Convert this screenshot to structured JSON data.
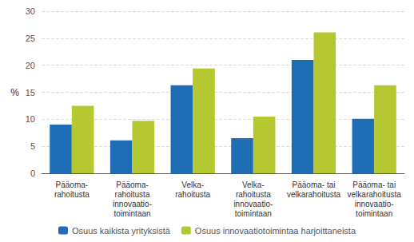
{
  "chart_data": {
    "type": "bar",
    "categories": [
      "Pääoma-\nrahoitusta",
      "Pääoma-\nrahoitusta\ninnovaatio-\ntoimintaan",
      "Velka-\nrahoitusta",
      "Velka-\nrahoitusta\ninnovaatio-\ntoimintaan",
      "Pääoma- tai\nvelkarahoitusta",
      "Pääoma- tai\nvelkarahoitusta\ninnovaatio-\ntoimintaan"
    ],
    "series": [
      {
        "name": "Osuus kaikista yrityksistä",
        "color": "#1f6eb5",
        "values": [
          9.0,
          6.1,
          16.3,
          6.5,
          21.0,
          10.1
        ]
      },
      {
        "name": "Osuus innovaatiotoimintaa harjoittaneista",
        "color": "#b5c832",
        "values": [
          12.5,
          9.7,
          19.4,
          10.5,
          26.1,
          16.3
        ]
      }
    ],
    "ylabel": "%",
    "ylim": [
      0,
      30
    ],
    "yticks": [
      0,
      5,
      10,
      15,
      20,
      25,
      30
    ],
    "grid": true,
    "legend": "bottom"
  }
}
